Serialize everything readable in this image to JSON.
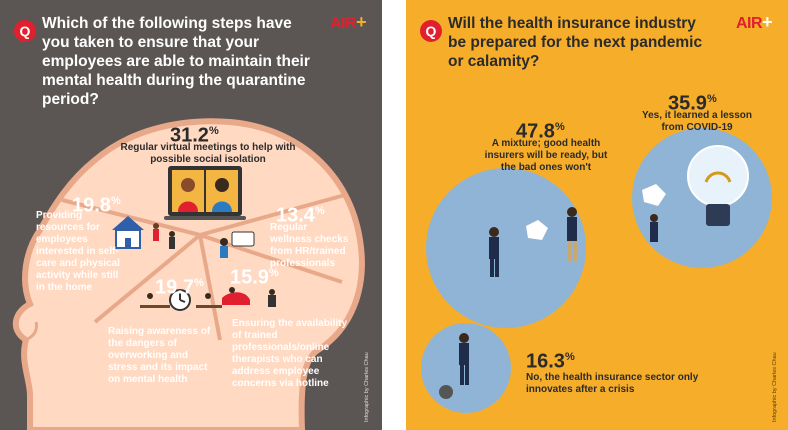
{
  "colors": {
    "left_bg": "#5b5654",
    "head": "#ffd9c2",
    "head_outline": "#e8a98a",
    "right_bg": "#f6ad2a",
    "circle": "#8fb4d6",
    "red": "#e0202e",
    "dark_text": "#2b2b2b"
  },
  "left": {
    "badge": "Q",
    "logo": "AIR",
    "question": "Which of the following steps have you taken to ensure that your employees are able to maintain their mental health during the quarantine period?",
    "credit": "Infographic by Charles Chau"
  },
  "right": {
    "badge": "Q",
    "logo": "AIR",
    "question": "Will the health insurance industry be prepared for the next pandemic or calamity?",
    "credit": "Infographic by Charles Chau"
  },
  "chart_data": [
    {
      "type": "pie",
      "title": "Which of the following steps have you taken to ensure that your employees are able to maintain their mental health during the quarantine period?",
      "labels": [
        "Regular virtual meetings to help with possible social isolation",
        "Regular wellness checks from HR/trained professionals",
        "Ensuring the availability of trained professionals/online therapists who can address employee concerns via hotline",
        "Raising awareness of the dangers of overworking and stress and its impact on mental health",
        "Providing resources for employees interested in self-care and physical activity while still in the home"
      ],
      "values": [
        31.2,
        13.4,
        15.9,
        19.7,
        19.8
      ],
      "value_labels": [
        "31.2%",
        "13.4%",
        "15.9%",
        "19.7%",
        "19.8%"
      ]
    },
    {
      "type": "pie",
      "title": "Will the health insurance industry be prepared for the next pandemic or calamity?",
      "labels": [
        "A mixture; good health insurers will be ready, but the bad ones won't",
        "Yes, it learned a lesson from COVID-19",
        "No, the health insurance sector only innovates after a crisis"
      ],
      "values": [
        47.8,
        35.9,
        16.3
      ],
      "value_labels": [
        "47.8%",
        "35.9%",
        "16.3%"
      ]
    }
  ]
}
